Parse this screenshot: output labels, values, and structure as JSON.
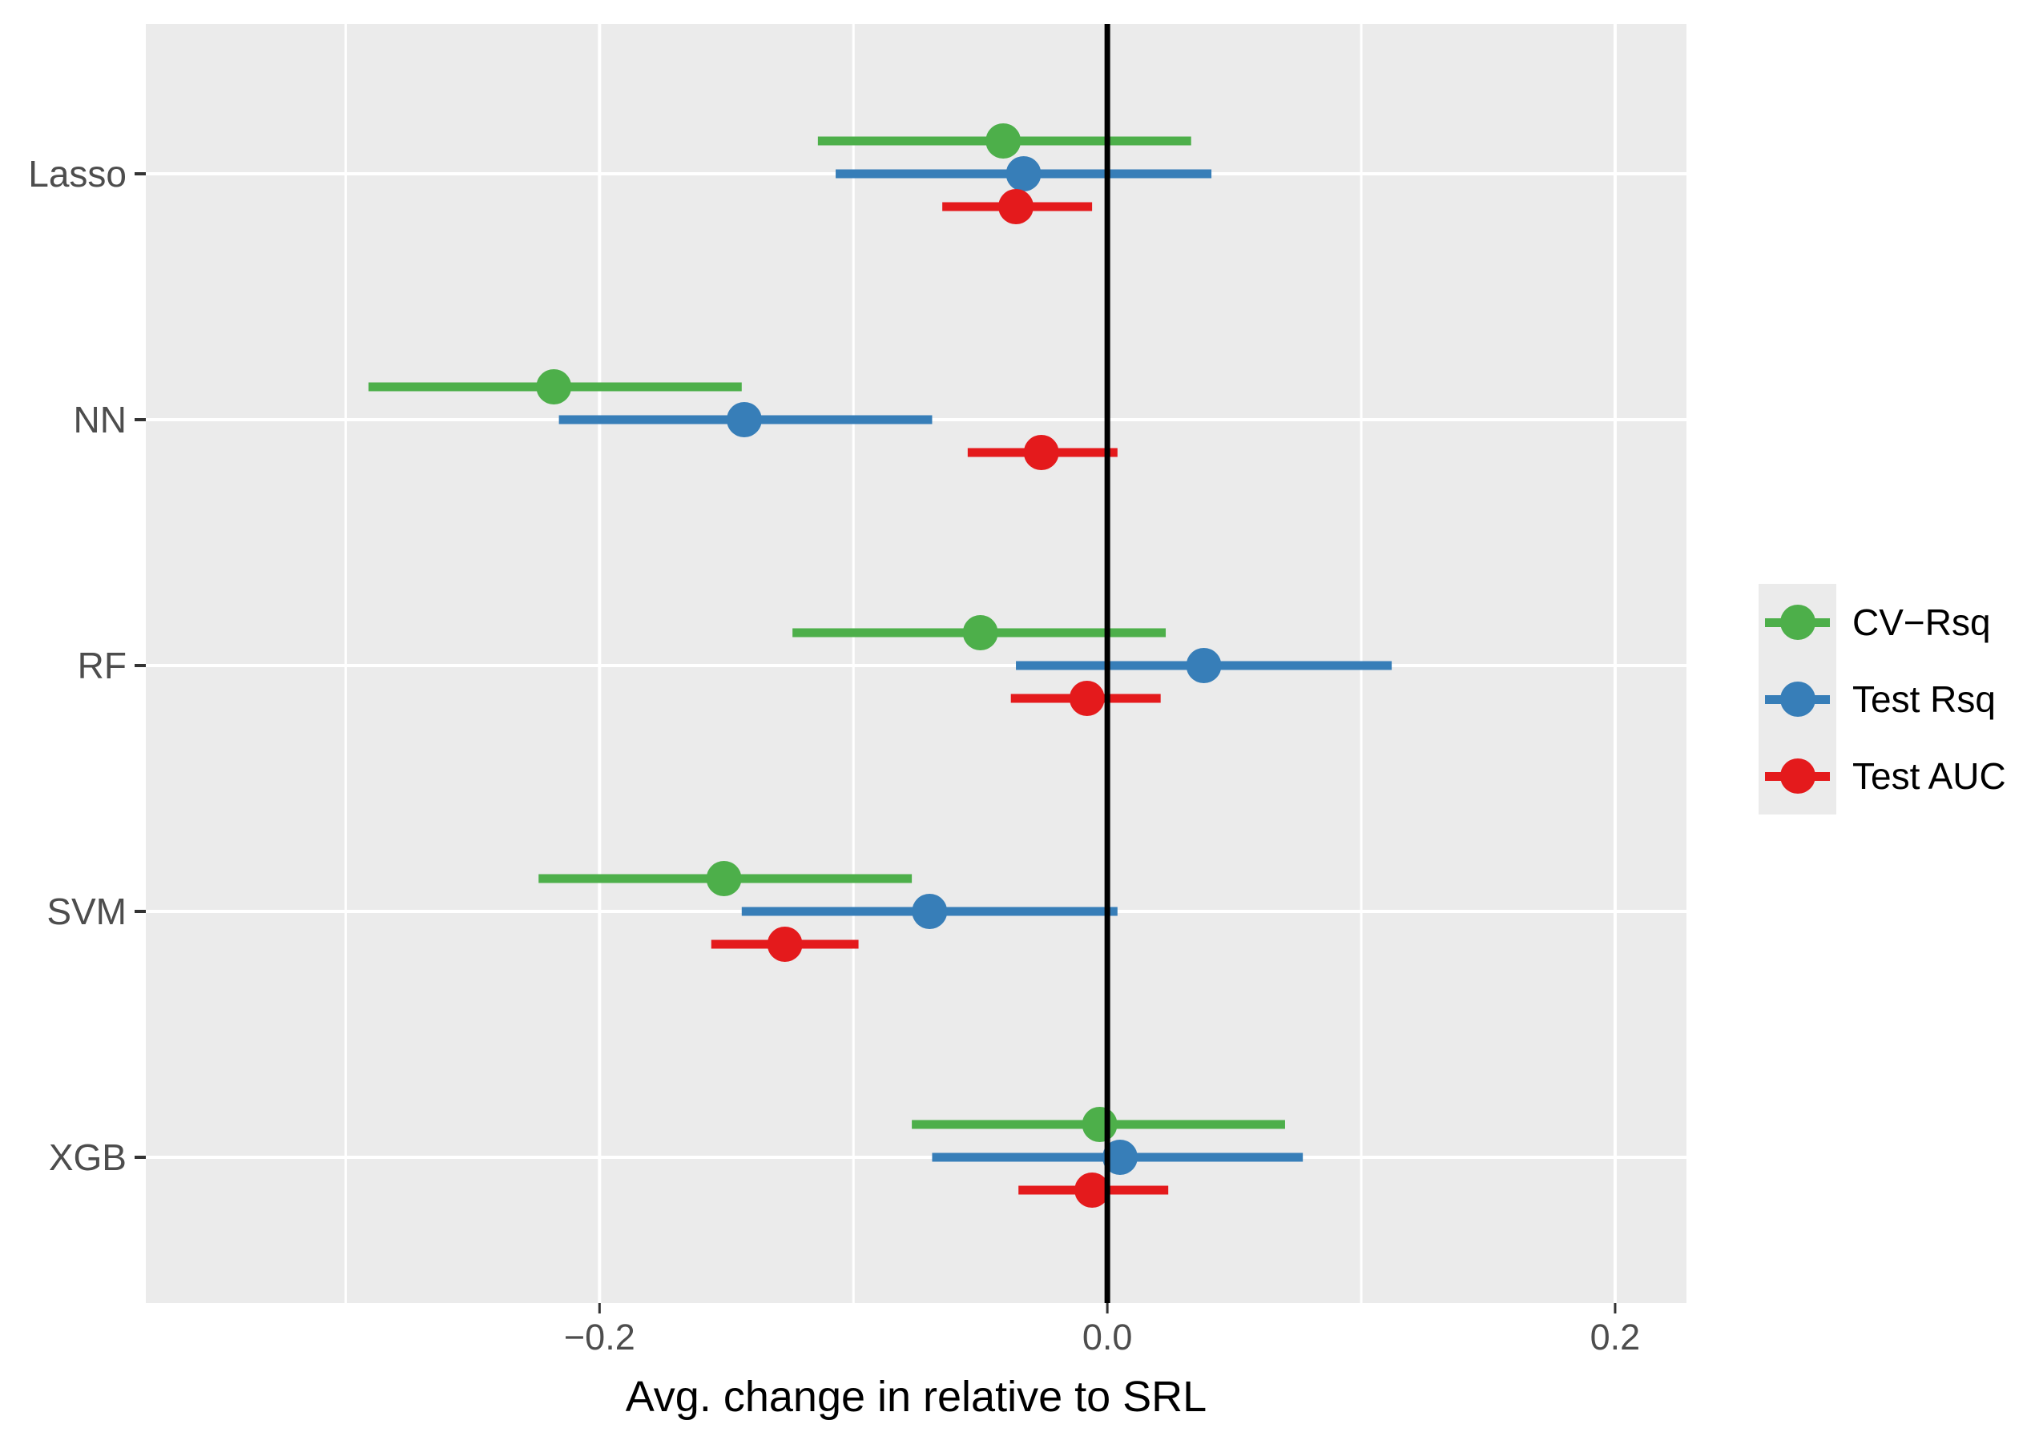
{
  "figure": {
    "background": "#FFFFFF",
    "panel_background": "#EBEBEB",
    "grid_color": "#FFFFFF",
    "tick_color": "#333333",
    "axis_text_color": "#4D4D4D",
    "title_color": "#000000",
    "zero_line_color": "#000000"
  },
  "chart_data": {
    "type": "scatter",
    "subtype": "dot-whisker-forest",
    "orientation": "horizontal",
    "title": "",
    "xlabel": "Avg. change in relative to SRL",
    "ylabel": "",
    "categories": [
      "Lasso",
      "NN",
      "RF",
      "SVM",
      "XGB"
    ],
    "xlim": [
      -0.3787,
      0.2281
    ],
    "x_ticks": [
      {
        "value": -0.2,
        "label": "−0.2"
      },
      {
        "value": 0.0,
        "label": "0.0"
      },
      {
        "value": 0.2,
        "label": "0.2"
      }
    ],
    "x_minor_ticks": [
      -0.3,
      -0.1,
      0.1
    ],
    "reference_line_x": 0.0,
    "grid": true,
    "legend_position": "right",
    "series": [
      {
        "name": "CV−Rsq",
        "color": "#4DAF4A",
        "values": [
          -0.041,
          -0.218,
          -0.05,
          -0.151,
          -0.003
        ],
        "ci_low": [
          -0.114,
          -0.291,
          -0.124,
          -0.224,
          -0.077
        ],
        "ci_high": [
          0.033,
          -0.144,
          0.023,
          -0.077,
          0.07
        ]
      },
      {
        "name": "Test Rsq",
        "color": "#377EB8",
        "values": [
          -0.033,
          -0.143,
          0.038,
          -0.07,
          0.005
        ],
        "ci_low": [
          -0.107,
          -0.216,
          -0.036,
          -0.144,
          -0.069
        ],
        "ci_high": [
          0.041,
          -0.069,
          0.112,
          0.004,
          0.077
        ]
      },
      {
        "name": "Test AUC",
        "color": "#E41A1C",
        "values": [
          -0.036,
          -0.026,
          -0.008,
          -0.127,
          -0.006
        ],
        "ci_low": [
          -0.065,
          -0.055,
          -0.038,
          -0.156,
          -0.035
        ],
        "ci_high": [
          -0.006,
          0.004,
          0.021,
          -0.098,
          0.024
        ]
      }
    ]
  }
}
